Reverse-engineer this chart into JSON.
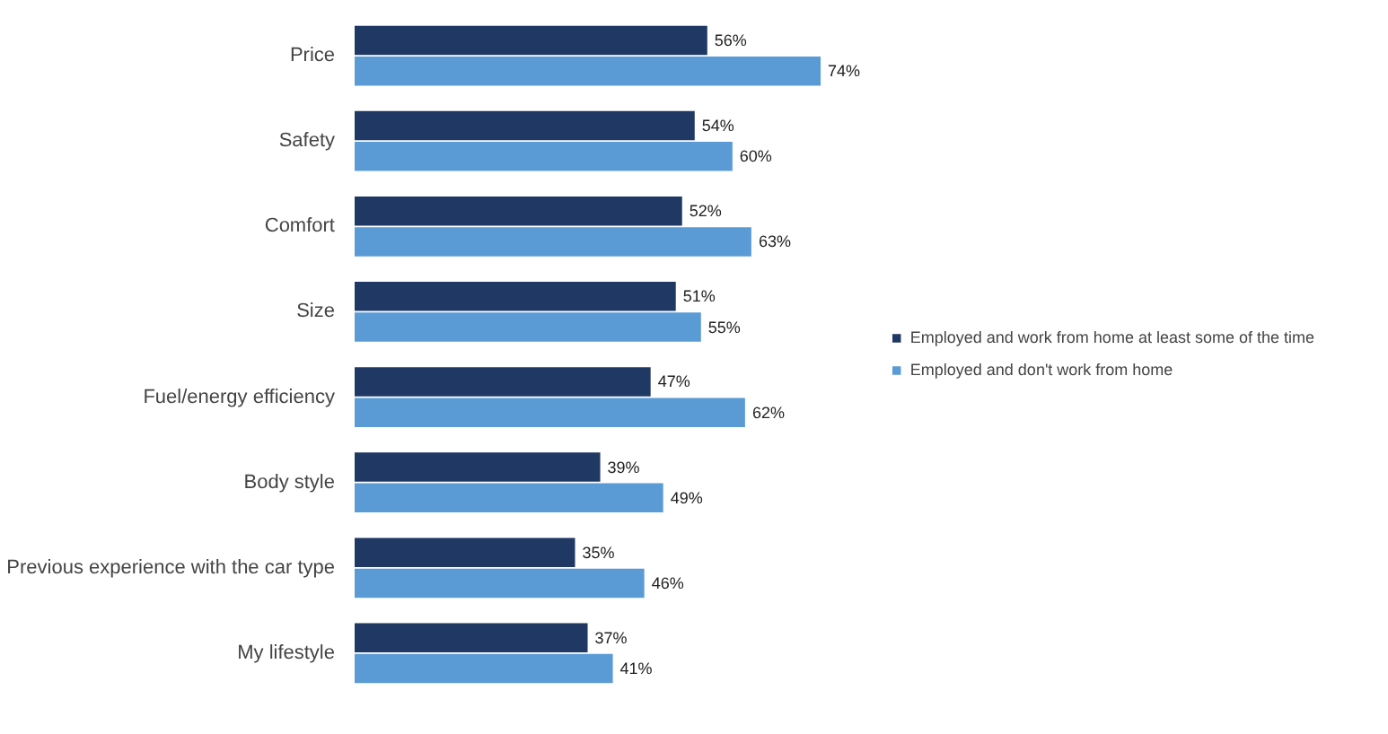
{
  "chart_data": {
    "type": "bar",
    "orientation": "horizontal",
    "categories": [
      "Price",
      "Safety",
      "Comfort",
      "Size",
      "Fuel/energy efficiency",
      "Body style",
      "Previous experience with the car type",
      "My lifestyle"
    ],
    "series": [
      {
        "name": "Employed and work from home at least some of the time",
        "color": "#1f3864",
        "values": [
          56,
          54,
          52,
          51,
          47,
          39,
          35,
          37
        ],
        "value_labels": [
          "56%",
          "54%",
          "52%",
          "51%",
          "47%",
          "39%",
          "35%",
          "37%"
        ]
      },
      {
        "name": "Employed and don't work from home",
        "color": "#5b9bd5",
        "values": [
          74,
          60,
          63,
          55,
          62,
          49,
          46,
          41
        ],
        "value_labels": [
          "74%",
          "60%",
          "63%",
          "55%",
          "62%",
          "49%",
          "46%",
          "41%"
        ]
      }
    ],
    "legend": "right",
    "grid": false
  }
}
